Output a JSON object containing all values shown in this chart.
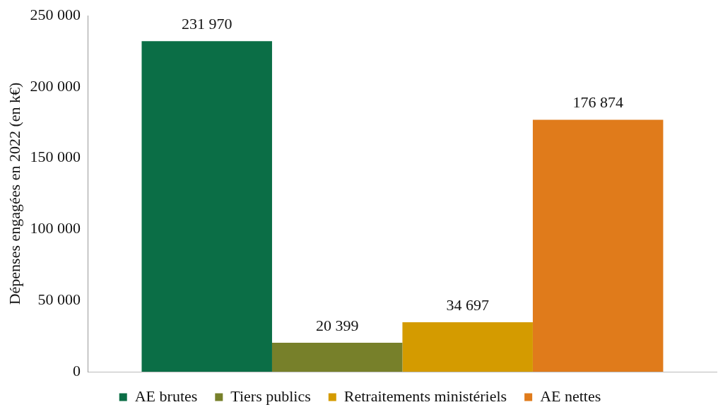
{
  "chart_data": {
    "type": "bar",
    "ylabel": "Dépenses engagées en 2022 (en k€)",
    "categories": [
      null
    ],
    "series": [
      {
        "name": "AE brutes",
        "color": "#0b6e46",
        "values": [
          231970
        ],
        "value_labels": [
          "231 970"
        ]
      },
      {
        "name": "Tiers publics",
        "color": "#77802a",
        "values": [
          20399
        ],
        "value_labels": [
          "20 399"
        ]
      },
      {
        "name": "Retraitements ministériels",
        "color": "#d49b00",
        "values": [
          34697
        ],
        "value_labels": [
          "34 697"
        ]
      },
      {
        "name": "AE nettes",
        "color": "#e07b1b",
        "values": [
          176874
        ],
        "value_labels": [
          "176 874"
        ]
      }
    ],
    "ylim": [
      0,
      250000
    ],
    "yticks": [
      0,
      {
        "value": 50000,
        "label": "50 000"
      },
      {
        "value": 100000,
        "label": "100 000"
      },
      {
        "value": 150000,
        "label": "150 000"
      },
      {
        "value": 200000,
        "label": "200 000"
      },
      {
        "value": 250000,
        "label": "250 000"
      }
    ],
    "grid": false,
    "legend": "bottom"
  }
}
